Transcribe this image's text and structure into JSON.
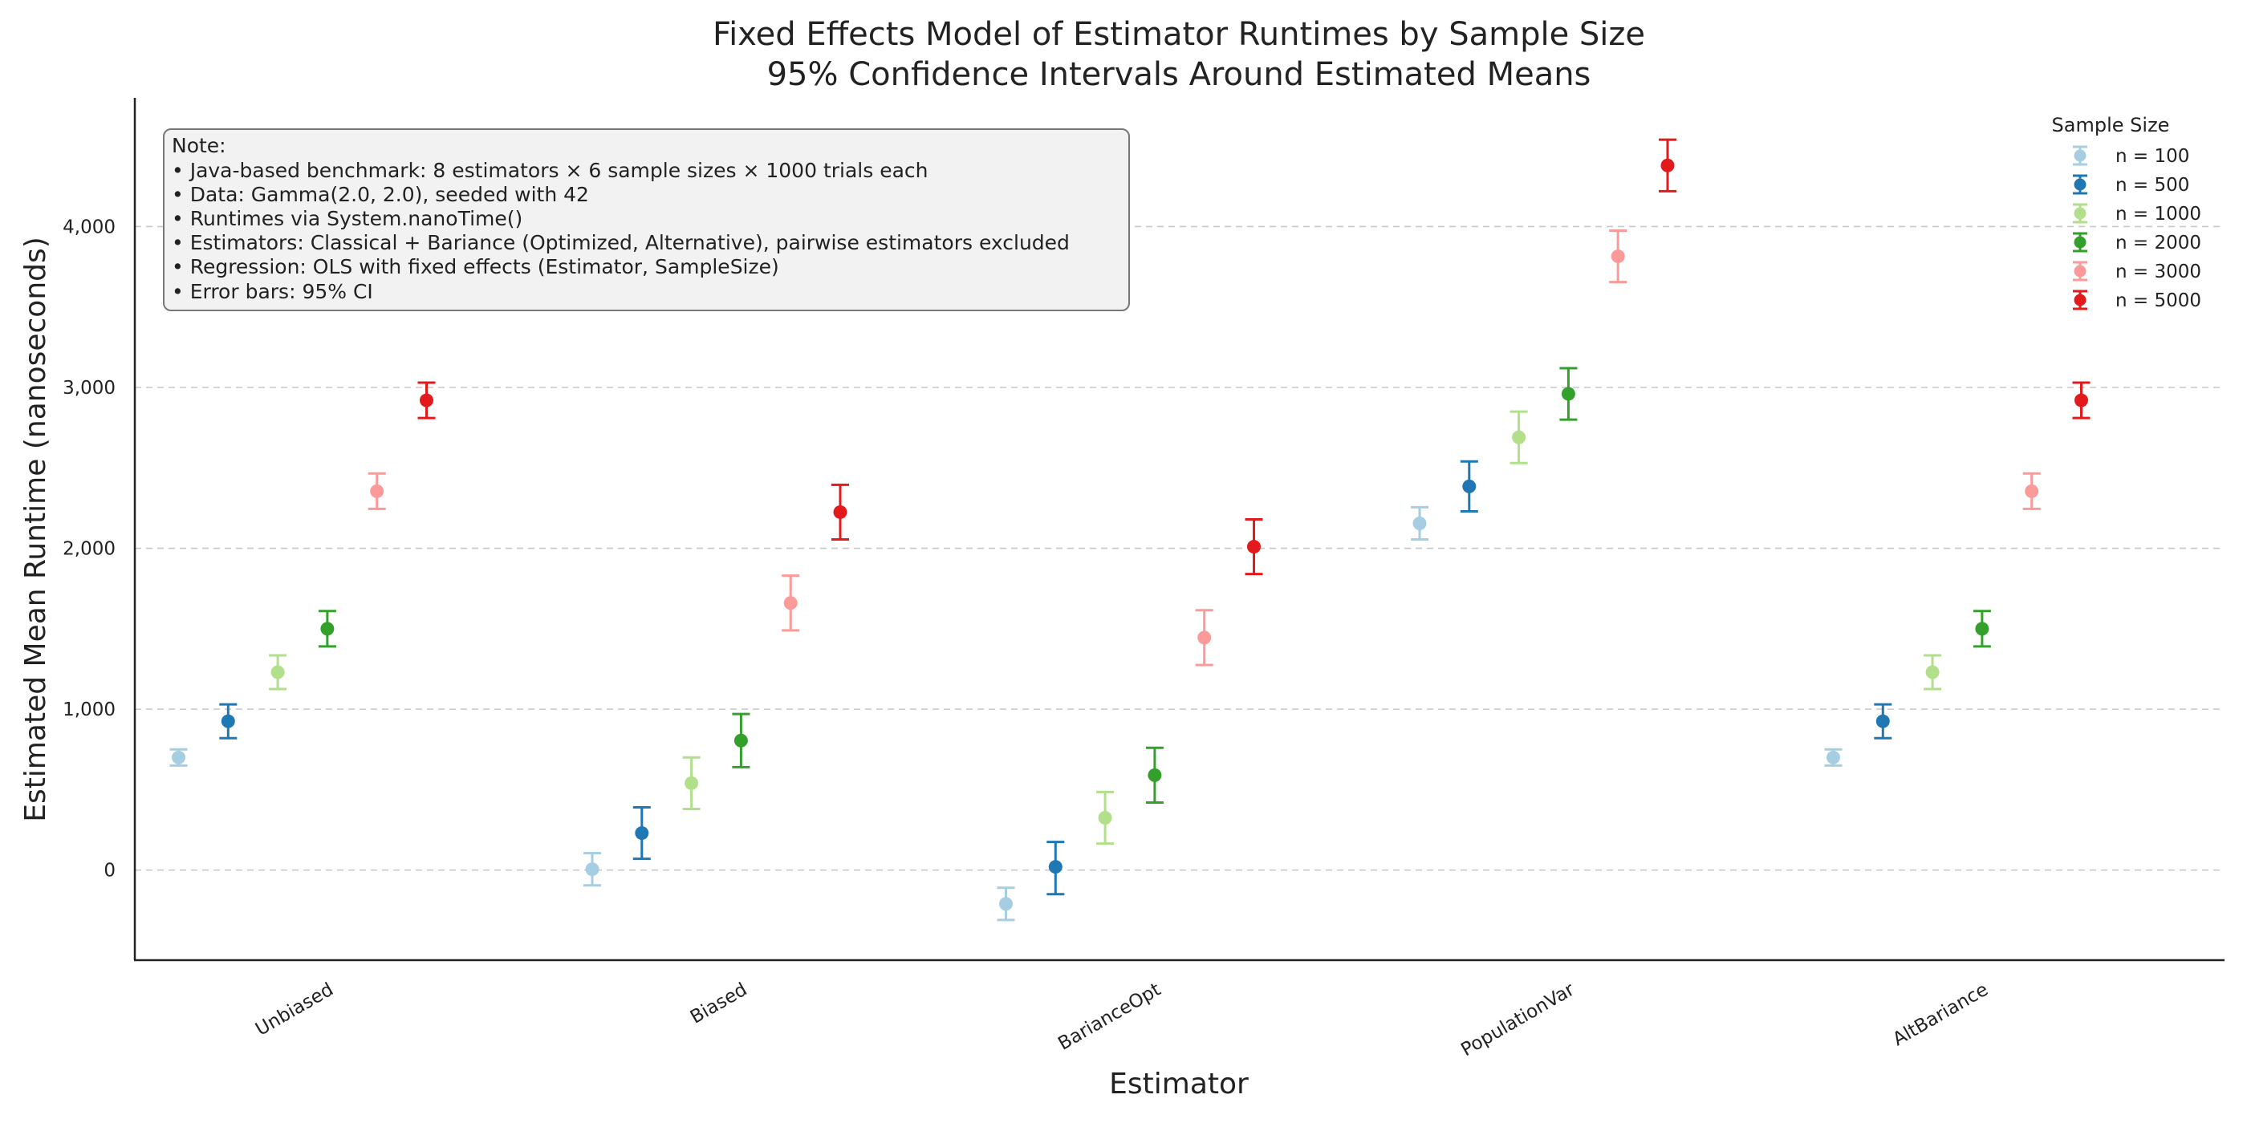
{
  "chart_data": {
    "type": "scatter",
    "title_lines": [
      "Fixed Effects Model of Estimator Runtimes by Sample Size",
      "95% Confidence Intervals Around Estimated Means"
    ],
    "xlabel": "Estimator",
    "ylabel": "Estimated Mean Runtime (nanoseconds)",
    "categories": [
      "Unbiased",
      "Biased",
      "BarianceOpt",
      "PopulationVar",
      "AltBariance"
    ],
    "ylim": [
      -560,
      4800
    ],
    "yticks": [
      0,
      1000,
      2000,
      3000,
      4000
    ],
    "ytick_labels": [
      "0",
      "1,000",
      "2,000",
      "3,000",
      "4,000"
    ],
    "grid": "horizontal dashed",
    "legend": {
      "title": "Sample Size",
      "placement": "top-right"
    },
    "series": [
      {
        "name": "n = 100",
        "color": "#a6cee3",
        "values": [
          700,
          5,
          -210,
          2155,
          700
        ],
        "ci_low": [
          650,
          -95,
          -310,
          2055,
          650
        ],
        "ci_high": [
          750,
          105,
          -110,
          2255,
          750
        ]
      },
      {
        "name": "n = 500",
        "color": "#1f78b4",
        "values": [
          925,
          230,
          20,
          2385,
          925
        ],
        "ci_low": [
          820,
          70,
          -150,
          2230,
          820
        ],
        "ci_high": [
          1030,
          390,
          175,
          2540,
          1030
        ]
      },
      {
        "name": "n = 1000",
        "color": "#b2df8a",
        "values": [
          1230,
          540,
          325,
          2690,
          1230
        ],
        "ci_low": [
          1125,
          380,
          165,
          2530,
          1125
        ],
        "ci_high": [
          1335,
          700,
          485,
          2850,
          1335
        ]
      },
      {
        "name": "n = 2000",
        "color": "#33a02c",
        "values": [
          1500,
          805,
          590,
          2960,
          1500
        ],
        "ci_low": [
          1390,
          640,
          420,
          2800,
          1390
        ],
        "ci_high": [
          1610,
          970,
          760,
          3120,
          1610
        ]
      },
      {
        "name": "n = 3000",
        "color": "#fb9a99",
        "values": [
          2355,
          1660,
          1445,
          3815,
          2355
        ],
        "ci_low": [
          2245,
          1490,
          1275,
          3655,
          2245
        ],
        "ci_high": [
          2465,
          1830,
          1615,
          3975,
          2465
        ]
      },
      {
        "name": "n = 5000",
        "color": "#e31a1c",
        "values": [
          2920,
          2225,
          2010,
          4380,
          2920
        ],
        "ci_low": [
          2810,
          2055,
          1840,
          4220,
          2810
        ],
        "ci_high": [
          3030,
          2395,
          2180,
          4540,
          3030
        ]
      }
    ],
    "annotation": {
      "lines": [
        "Note:",
        "• Java-based benchmark: 8 estimators × 6 sample sizes × 1000 trials each",
        "• Data: Gamma(2.0, 2.0), seeded with 42",
        "• Runtimes via System.nanoTime()",
        "• Estimators: Classical + Bariance (Optimized, Alternative), pairwise estimators excluded",
        "• Regression: OLS with fixed effects (Estimator, SampleSize)",
        "• Error bars: 95% CI"
      ]
    }
  }
}
